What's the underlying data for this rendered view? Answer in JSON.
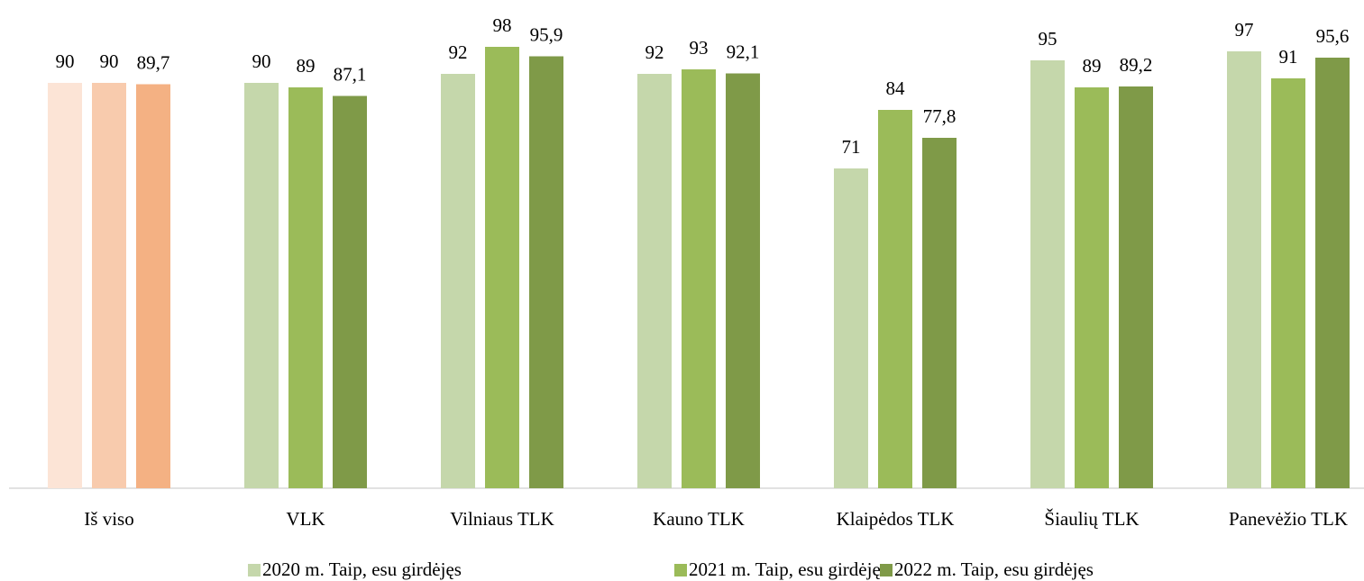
{
  "chart_data": {
    "type": "bar",
    "categories": [
      "Iš viso",
      "VLK",
      "Vilniaus TLK",
      "Kauno TLK",
      "Klaipėdos TLK",
      "Šiaulių TLK",
      "Panevėžio TLK"
    ],
    "series": [
      {
        "name": "2020 m. Taip, esu girdėjęs",
        "color": "#c5d7ab",
        "colors": [
          "#fce4d6",
          "#c5d7ab",
          "#c5d7ab",
          "#c5d7ab",
          "#c5d7ab",
          "#c5d7ab",
          "#c5d7ab"
        ],
        "values": [
          90,
          90,
          92,
          92,
          71,
          95,
          97
        ]
      },
      {
        "name": "2021 m. Taip, esu girdėjęs",
        "color": "#9bbb59",
        "colors": [
          "#f8cbad",
          "#9bbb59",
          "#9bbb59",
          "#9bbb59",
          "#9bbb59",
          "#9bbb59",
          "#9bbb59"
        ],
        "values": [
          90,
          89,
          98,
          93,
          84,
          89,
          91
        ]
      },
      {
        "name": "2022 m. Taip, esu girdėjęs",
        "color": "#7f9a48",
        "colors": [
          "#f4b183",
          "#7f9a48",
          "#7f9a48",
          "#7f9a48",
          "#7f9a48",
          "#7f9a48",
          "#7f9a48"
        ],
        "values": [
          89.7,
          87.1,
          95.9,
          92.1,
          77.8,
          89.2,
          95.6
        ],
        "value_labels": [
          "89,7",
          "87,1",
          "95,9",
          "92,1",
          "77,8",
          "89,2",
          "95,6"
        ]
      }
    ],
    "ylim": [
      0,
      100
    ],
    "legend": "bottom"
  }
}
